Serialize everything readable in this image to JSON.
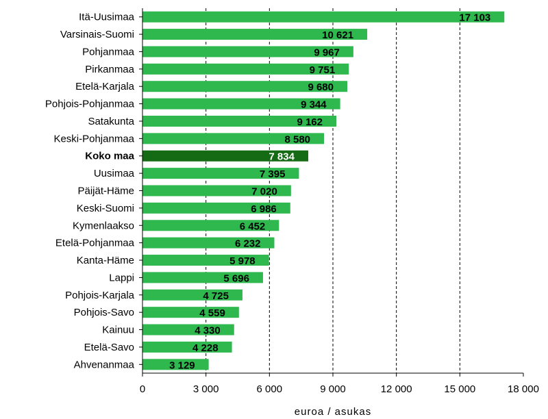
{
  "chart_data": {
    "type": "bar",
    "orientation": "horizontal",
    "categories": [
      "Itä-Uusimaa",
      "Varsinais-Suomi",
      "Pohjanmaa",
      "Pirkanmaa",
      "Etelä-Karjala",
      "Pohjois-Pohjanmaa",
      "Satakunta",
      "Keski-Pohjanmaa",
      "Koko maa",
      "Uusimaa",
      "Päijät-Häme",
      "Keski-Suomi",
      "Kymenlaakso",
      "Etelä-Pohjanmaa",
      "Kanta-Häme",
      "Lappi",
      "Pohjois-Karjala",
      "Pohjois-Savo",
      "Kainuu",
      "Etelä-Savo",
      "Ahvenanmaa"
    ],
    "values": [
      17103,
      10621,
      9967,
      9751,
      9680,
      9344,
      9162,
      8580,
      7834,
      7395,
      7020,
      6986,
      6452,
      6232,
      5978,
      5696,
      4725,
      4559,
      4330,
      4228,
      3129
    ],
    "value_labels": [
      "17 103",
      "10 621",
      "9 967",
      "9 751",
      "9 680",
      "9 344",
      "9 162",
      "8 580",
      "7 834",
      "7 395",
      "7 020",
      "6 986",
      "6 452",
      "6 232",
      "5 978",
      "5 696",
      "4 725",
      "4 559",
      "4 330",
      "4 228",
      "3 129"
    ],
    "highlight_category": "Koko maa",
    "xlabel": "euroa / asukas",
    "xlim": [
      0,
      18000
    ],
    "xticks": [
      0,
      3000,
      6000,
      9000,
      12000,
      15000,
      18000
    ],
    "xtick_labels": [
      "0",
      "3 000",
      "6 000",
      "9 000",
      "12 000",
      "15 000",
      "18 000"
    ],
    "grid": "vertical dashed",
    "legend": "none",
    "colors": {
      "bar": "#2eb84e",
      "highlight": "#146b14",
      "grid": "#000000"
    }
  }
}
